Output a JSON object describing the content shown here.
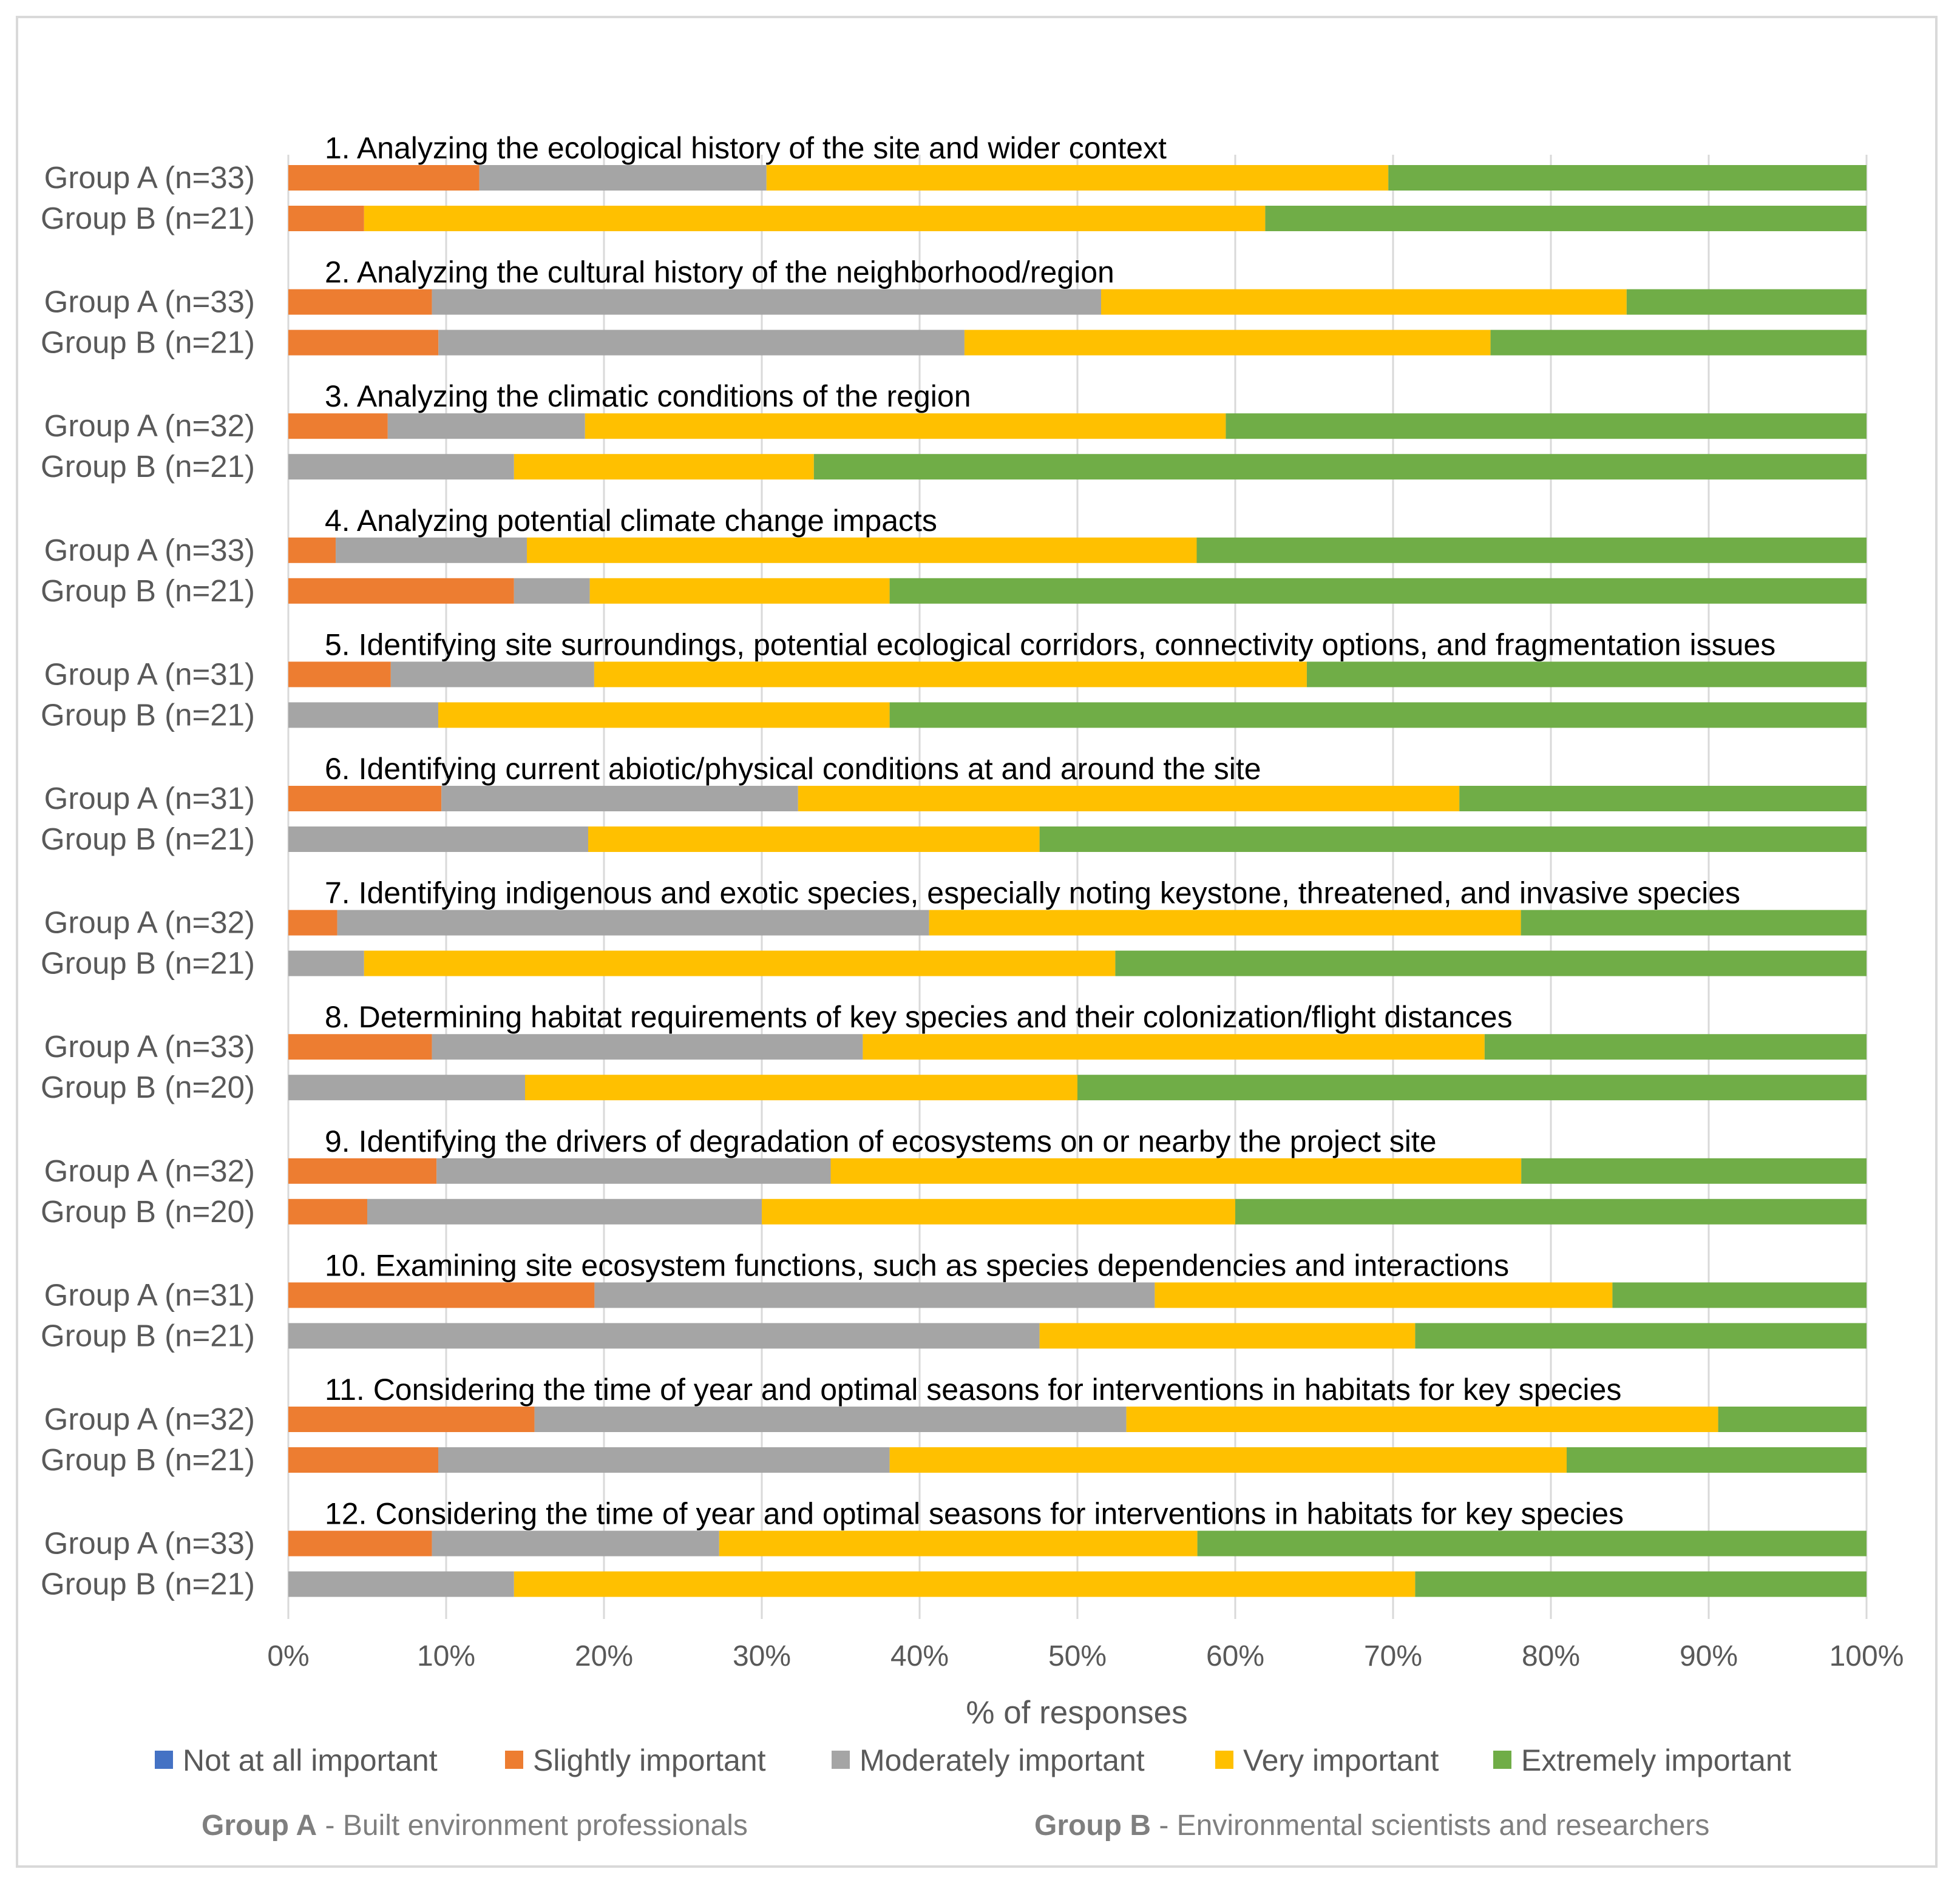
{
  "chart_data": {
    "type": "bar",
    "stacked": "100%",
    "orientation": "horizontal",
    "xlabel": "% of responses",
    "xlim": [
      0,
      100
    ],
    "x_ticks": [
      "0%",
      "10%",
      "20%",
      "30%",
      "40%",
      "50%",
      "60%",
      "70%",
      "80%",
      "90%",
      "100%"
    ],
    "grid": "vertical",
    "legend_position": "bottom",
    "series_names": [
      "Not at all important",
      "Slightly important",
      "Moderately important",
      "Very important",
      "Extremely important"
    ],
    "colors": [
      "#4472c4",
      "#ed7d31",
      "#a5a5a5",
      "#ffc000",
      "#70ad47"
    ],
    "items": [
      {
        "title": "1. Analyzing the ecological history of the site and wider context",
        "bars": [
          {
            "label": "Group A (n=33)",
            "values": [
              0,
              12.1,
              18.2,
              39.4,
              30.3
            ]
          },
          {
            "label": "Group B (n=21)",
            "values": [
              0,
              4.8,
              0,
              57.1,
              38.1
            ]
          }
        ]
      },
      {
        "title": "2. Analyzing the cultural history of the neighborhood/region",
        "bars": [
          {
            "label": "Group A (n=33)",
            "values": [
              0,
              9.1,
              42.4,
              33.3,
              15.2
            ]
          },
          {
            "label": "Group B (n=21)",
            "values": [
              0,
              9.5,
              33.3,
              33.3,
              23.8
            ]
          }
        ]
      },
      {
        "title": "3. Analyzing the climatic conditions of the region",
        "bars": [
          {
            "label": "Group A (n=32)",
            "values": [
              0,
              6.3,
              12.5,
              40.6,
              40.6
            ]
          },
          {
            "label": "Group B (n=21)",
            "values": [
              0,
              0,
              14.3,
              19.0,
              66.7
            ]
          }
        ]
      },
      {
        "title": "4. Analyzing potential climate change impacts",
        "bars": [
          {
            "label": "Group A (n=33)",
            "values": [
              0,
              3.0,
              12.1,
              42.4,
              42.4
            ]
          },
          {
            "label": "Group B (n=21)",
            "values": [
              0,
              14.3,
              4.8,
              19.0,
              61.9
            ]
          }
        ]
      },
      {
        "title": "5. Identifying  site surroundings, potential ecological corridors, connectivity  options, and fragmentation issues",
        "bars": [
          {
            "label": "Group A (n=31)",
            "values": [
              0,
              6.5,
              12.9,
              45.2,
              35.5
            ]
          },
          {
            "label": "Group B (n=21)",
            "values": [
              0,
              0,
              9.5,
              28.6,
              61.9
            ]
          }
        ]
      },
      {
        "title": "6. Identifying  current abiotic/physical conditions at and around the site",
        "bars": [
          {
            "label": "Group A (n=31)",
            "values": [
              0,
              9.7,
              22.6,
              41.9,
              25.8
            ]
          },
          {
            "label": "Group B (n=21)",
            "values": [
              0,
              0,
              19.0,
              28.6,
              52.4
            ]
          }
        ]
      },
      {
        "title": "7. Identifying  indigenous and exotic species, especially noting keystone, threatened, and invasive species",
        "bars": [
          {
            "label": "Group A (n=32)",
            "values": [
              0,
              3.1,
              37.5,
              37.5,
              21.9
            ]
          },
          {
            "label": "Group B (n=21)",
            "values": [
              0,
              0,
              4.8,
              47.6,
              47.6
            ]
          }
        ]
      },
      {
        "title": "8. Determining habitat requirements of key species and their colonization/flight  distances",
        "bars": [
          {
            "label": "Group A (n=33)",
            "values": [
              0,
              9.1,
              27.3,
              39.4,
              24.2
            ]
          },
          {
            "label": "Group B (n=20)",
            "values": [
              0,
              0,
              15.0,
              35.0,
              50.0
            ]
          }
        ]
      },
      {
        "title": "9. Identifying  the drivers of degradation of ecosystems on or nearby the project site",
        "bars": [
          {
            "label": "Group A (n=32)",
            "values": [
              0,
              9.4,
              25.0,
              43.8,
              21.9
            ]
          },
          {
            "label": "Group B (n=20)",
            "values": [
              0,
              5.0,
              25.0,
              30.0,
              40.0
            ]
          }
        ]
      },
      {
        "title": "10. Examining site ecosystem functions, such as species dependencies and interactions",
        "bars": [
          {
            "label": "Group A (n=31)",
            "values": [
              0,
              19.4,
              35.5,
              29.0,
              16.1
            ]
          },
          {
            "label": "Group B (n=21)",
            "values": [
              0,
              0,
              47.6,
              23.8,
              28.6
            ]
          }
        ]
      },
      {
        "title": "11. Considering the time of year and optimal seasons for interventions in habitats  for key species",
        "bars": [
          {
            "label": "Group A (n=32)",
            "values": [
              0,
              15.6,
              37.5,
              37.5,
              9.4
            ]
          },
          {
            "label": "Group B (n=21)",
            "values": [
              0,
              9.5,
              28.6,
              42.9,
              19.0
            ]
          }
        ]
      },
      {
        "title": "12. Considering the time of year and optimal seasons for interventions in habitats  for key species",
        "bars": [
          {
            "label": "Group A (n=33)",
            "values": [
              0,
              9.1,
              18.2,
              30.3,
              42.4
            ]
          },
          {
            "label": "Group B (n=21)",
            "values": [
              0,
              0,
              14.3,
              57.1,
              28.6
            ]
          }
        ]
      }
    ]
  },
  "footnote": {
    "group_a_bold": "Group A",
    "group_a_text": " - Built environment professionals",
    "group_b_bold": "Group B",
    "group_b_text": " - Environmental scientists and researchers"
  }
}
